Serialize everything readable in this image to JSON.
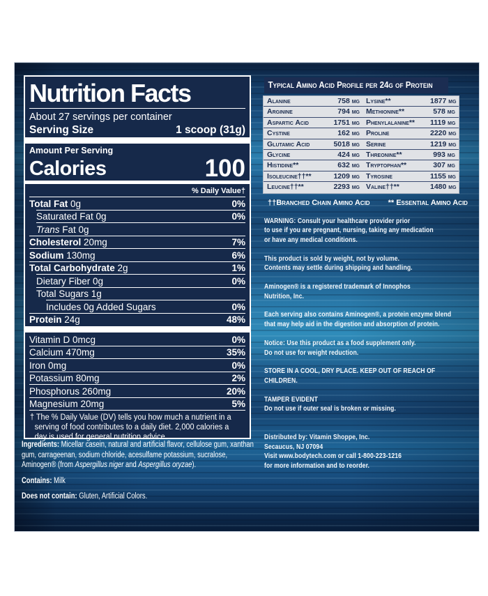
{
  "colors": {
    "panel_navy": "#16294a",
    "table_header_navy": "#1b2d52",
    "table_row_gray": "#e0e2e6",
    "table_text_navy": "#1b2c4e",
    "label_text_white": "#ffffff",
    "background_blue_mid": "#2a7cac",
    "background_blue_dark": "#0a1e3a"
  },
  "panel": {
    "title": "Nutrition Facts",
    "servings": "About 27 servings per container",
    "serving_size_label": "Serving Size",
    "serving_size_value": "1 scoop (31g)",
    "amount_per_serving": "Amount Per Serving",
    "calories_label": "Calories",
    "calories_value": "100",
    "daily_value_header": "% Daily Value†",
    "nutrients": [
      {
        "lead": "Total Fat",
        "lead_style": "bold",
        "rest": " 0g",
        "dv": "0%",
        "indent": 0
      },
      {
        "lead": "",
        "lead_style": "plain",
        "rest": "Saturated Fat 0g",
        "dv": "0%",
        "indent": 1
      },
      {
        "lead": "Trans",
        "lead_style": "italic",
        "rest": " Fat 0g",
        "dv": "",
        "indent": 1
      },
      {
        "lead": "Cholesterol",
        "lead_style": "bold",
        "rest": " 20mg",
        "dv": "7%",
        "indent": 0
      },
      {
        "lead": "Sodium",
        "lead_style": "bold",
        "rest": " 130mg",
        "dv": "6%",
        "indent": 0
      },
      {
        "lead": "Total Carbohydrate",
        "lead_style": "bold",
        "rest": " 2g",
        "dv": "1%",
        "indent": 0
      },
      {
        "lead": "",
        "lead_style": "plain",
        "rest": "Dietary Fiber 0g",
        "dv": "0%",
        "indent": 1
      },
      {
        "lead": "",
        "lead_style": "plain",
        "rest": "Total Sugars 1g",
        "dv": "",
        "indent": 1
      },
      {
        "lead": "",
        "lead_style": "plain",
        "rest": "Includes 0g Added Sugars",
        "dv": "0%",
        "indent": 2
      },
      {
        "lead": "Protein",
        "lead_style": "bold",
        "rest": " 24g",
        "dv": "48%",
        "indent": 0
      }
    ],
    "minerals": [
      {
        "name": "Vitamin D 0mcg",
        "dv": "0%"
      },
      {
        "name": "Calcium 470mg",
        "dv": "35%"
      },
      {
        "name": "Iron 0mg",
        "dv": "0%"
      },
      {
        "name": "Potassium 80mg",
        "dv": "2%"
      },
      {
        "name": "Phosphorus 260mg",
        "dv": "20%"
      },
      {
        "name": "Magnesium 20mg",
        "dv": "5%"
      }
    ],
    "footnote": "† The % Daily Value (DV) tells you how much a nutrient in a serving of food contributes to a daily diet. 2,000 calories a day is used for general nutrition advice."
  },
  "ingredients": {
    "label": "Ingredients:",
    "part1": " Micellar casein, natural and artificial flavor, cellulose gum, xanthan gum, carrageenan, sodium chloride, acesulfame potassium, sucralose, Aminogen® (from ",
    "italic1": "Aspergillus niger",
    "part2": " and ",
    "italic2": "Aspergillus oryzae",
    "part3": ").",
    "contains_label": "Contains:",
    "contains_text": " Milk",
    "not_contain_label": "Does not contain:",
    "not_contain_text": " Gluten, Artificial Colors."
  },
  "amino_table": {
    "title": "Typical Amino Acid Profile per 24g of Protein",
    "rows": [
      {
        "left_name": "Alanine",
        "left_value": "758 mg",
        "right_name": "Lysine**",
        "right_value": "1877 mg"
      },
      {
        "left_name": "Arginine",
        "left_value": "794 mg",
        "right_name": "Methionine**",
        "right_value": "578 mg"
      },
      {
        "left_name": "Aspartic Acid",
        "left_value": "1751 mg",
        "right_name": "Phenylalanine**",
        "right_value": "1119 mg"
      },
      {
        "left_name": "Cystine",
        "left_value": "162 mg",
        "right_name": "Proline",
        "right_value": "2220 mg"
      },
      {
        "left_name": "Glutamic Acid",
        "left_value": "5018 mg",
        "right_name": "Serine",
        "right_value": "1219 mg"
      },
      {
        "left_name": "Glycine",
        "left_value": "424 mg",
        "right_name": "Threonine**",
        "right_value": "993 mg"
      },
      {
        "left_name": "Histidine**",
        "left_value": "632 mg",
        "right_name": "Tryptophan**",
        "right_value": "307 mg"
      },
      {
        "left_name": "Isoleucine††**",
        "left_value": "1209 mg",
        "right_name": "Tyrosine",
        "right_value": "1155 mg"
      },
      {
        "left_name": "Leucine††**",
        "left_value": "2293 mg",
        "right_name": "Valine††**",
        "right_value": "1480 mg"
      }
    ],
    "footnote_left": "††Branched Chain Amino Acid",
    "footnote_right": "** Essential Amino Acid"
  },
  "info_paragraphs": [
    {
      "text": "WARNING: Consult your healthcare provider prior\nto use if you are pregnant, nursing, taking any medication\nor have any medical conditions.",
      "extra_gap": false
    },
    {
      "text": "This product is sold by weight, not by volume.\nContents may settle during shipping and handling.",
      "extra_gap": false
    },
    {
      "text": "Aminogen® is a registered trademark of Innophos\nNutrition, Inc.",
      "extra_gap": false
    },
    {
      "text": "Each serving also contains Aminogen®, a protein enzyme blend\nthat may help aid in the digestion and absorption of protein.",
      "extra_gap": false
    },
    {
      "text": "Notice: Use this product as a food supplement only.\nDo not use for weight reduction.",
      "extra_gap": false
    },
    {
      "text": "STORE IN A COOL, DRY PLACE. KEEP OUT OF REACH OF\nCHILDREN.",
      "extra_gap": false
    },
    {
      "text": "TAMPER EVIDENT\nDo not use if outer seal is broken or missing.",
      "extra_gap": false
    },
    {
      "text": "Distributed by: Vitamin Shoppe, Inc.\nSecaucus, NJ 07094\nVisit www.bodytech.com or call 1-800-223-1216\nfor more information and to reorder.",
      "extra_gap": true
    }
  ]
}
